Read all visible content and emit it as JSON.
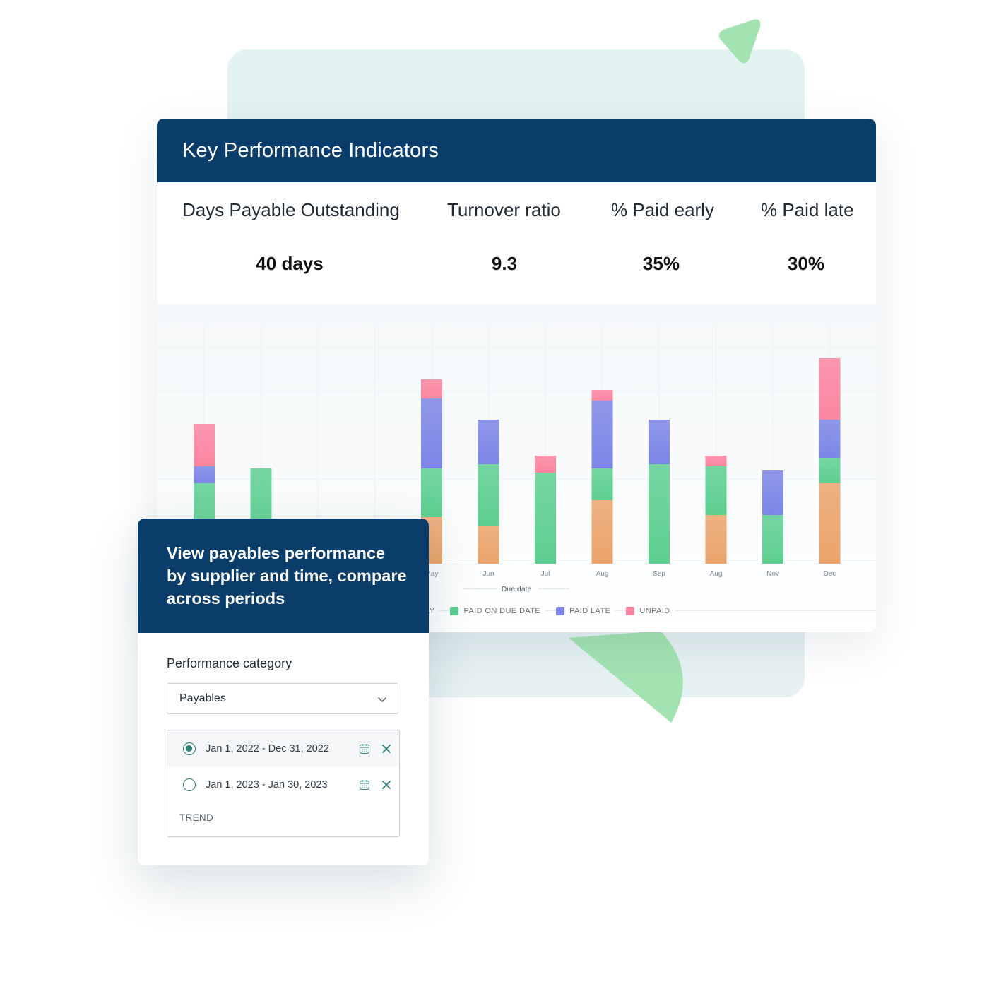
{
  "kpi": {
    "title": "Key Performance Indicators",
    "metrics": [
      {
        "label": "Days Payable Outstanding",
        "value": "40 days"
      },
      {
        "label": "Turnover ratio",
        "value": "9.3"
      },
      {
        "label": "% Paid early",
        "value": "35%"
      },
      {
        "label": "% Paid late",
        "value": "30%"
      }
    ]
  },
  "chart_data": {
    "type": "bar",
    "stacked": true,
    "categories": [
      "",
      "",
      "",
      "",
      "May",
      "Jun",
      "Jul",
      "Aug",
      "Sep",
      "Aug",
      "Nov",
      "Dec"
    ],
    "series": [
      {
        "name": "",
        "color": "#eba46c",
        "values": [
          0,
          0,
          0,
          0,
          22,
          18,
          0,
          30,
          0,
          23,
          0,
          38
        ]
      },
      {
        "name": "PAID ON DUE DATE",
        "color": "#5ecf91",
        "values": [
          38,
          45,
          0,
          0,
          23,
          29,
          43,
          15,
          47,
          23,
          23,
          12
        ]
      },
      {
        "name": "PAID LATE",
        "color": "#7d86e6",
        "values": [
          8,
          0,
          0,
          0,
          33,
          21,
          0,
          32,
          21,
          0,
          21,
          18
        ]
      },
      {
        "name": "UNPAID",
        "color": "#fb86a0",
        "values": [
          20,
          0,
          0,
          0,
          9,
          0,
          8,
          5,
          0,
          5,
          0,
          29
        ]
      }
    ],
    "xlabel": "Due date",
    "legend_position": "bottom",
    "legend_partial_label": "LY",
    "grid": true
  },
  "panel": {
    "headline": "View payables performance by supplier and time, compare across periods",
    "category_label": "Performance category",
    "category_value": "Payables",
    "periods": [
      {
        "text": "Jan 1, 2022 - Dec 31, 2022",
        "selected": true
      },
      {
        "text": "Jan 1, 2023 - Jan 30, 2023",
        "selected": false
      }
    ],
    "trend_label": "TREND"
  },
  "icons": {
    "dropdown": "chevron-down-icon",
    "calendar": "calendar-icon",
    "remove": "close-icon"
  },
  "colors": {
    "header_bg": "#0b3d6b",
    "accent": "#2a7c74",
    "decor_green": "#a3e3b2"
  }
}
